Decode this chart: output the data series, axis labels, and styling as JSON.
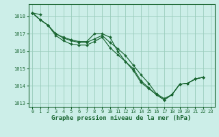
{
  "background_color": "#cceee8",
  "grid_color": "#99ccbb",
  "line_color": "#1a6632",
  "marker_color": "#1a6632",
  "title": "Graphe pression niveau de la mer (hPa)",
  "title_fontsize": 6.5,
  "tick_fontsize": 5.0,
  "xlim": [
    -0.5,
    23.5
  ],
  "ylim": [
    1012.8,
    1018.7
  ],
  "yticks": [
    1013,
    1014,
    1015,
    1016,
    1017,
    1018
  ],
  "xticks": [
    0,
    1,
    2,
    3,
    4,
    5,
    6,
    7,
    8,
    9,
    10,
    11,
    12,
    13,
    14,
    15,
    16,
    17,
    18,
    19,
    20,
    21,
    22,
    23
  ],
  "series": [
    {
      "x": [
        0,
        1
      ],
      "y": [
        1018.2,
        1018.1
      ]
    },
    {
      "x": [
        0,
        1,
        2,
        3,
        4,
        5,
        6,
        7,
        8,
        9,
        10,
        11,
        12,
        13,
        14,
        15,
        16,
        17,
        18,
        19,
        20,
        21,
        22
      ],
      "y": [
        1018.2,
        1017.8,
        1017.5,
        1017.0,
        1016.8,
        1016.65,
        1016.55,
        1016.55,
        1017.0,
        1017.0,
        1016.8,
        1016.0,
        1015.4,
        1015.0,
        1014.3,
        1013.9,
        1013.5,
        1013.2,
        1013.5,
        1014.1,
        1014.15,
        1014.4,
        1014.5
      ]
    },
    {
      "x": [
        0,
        1,
        2,
        3,
        4,
        5,
        6,
        7,
        8,
        9,
        10,
        11,
        12,
        13,
        14,
        15,
        16,
        17,
        18,
        19,
        20,
        21,
        22
      ],
      "y": [
        1018.2,
        1017.8,
        1017.5,
        1017.0,
        1016.75,
        1016.6,
        1016.5,
        1016.5,
        1016.7,
        1016.9,
        1016.5,
        1016.15,
        1015.75,
        1015.2,
        1014.65,
        1014.15,
        1013.55,
        1013.28,
        1013.5,
        1014.1,
        1014.15,
        1014.4,
        1014.5
      ]
    },
    {
      "x": [
        0,
        1,
        2,
        3,
        4,
        5,
        6,
        7,
        8,
        9,
        10,
        11,
        12,
        13,
        14,
        15,
        16,
        17,
        18,
        19,
        20,
        21,
        22
      ],
      "y": [
        1018.2,
        1017.8,
        1017.5,
        1016.9,
        1016.6,
        1016.4,
        1016.35,
        1016.35,
        1016.55,
        1016.8,
        1016.2,
        1015.8,
        1015.4,
        1014.9,
        1014.2,
        1013.85,
        1013.5,
        1013.2,
        1013.5,
        1014.1,
        1014.15,
        1014.4,
        1014.5
      ]
    }
  ]
}
